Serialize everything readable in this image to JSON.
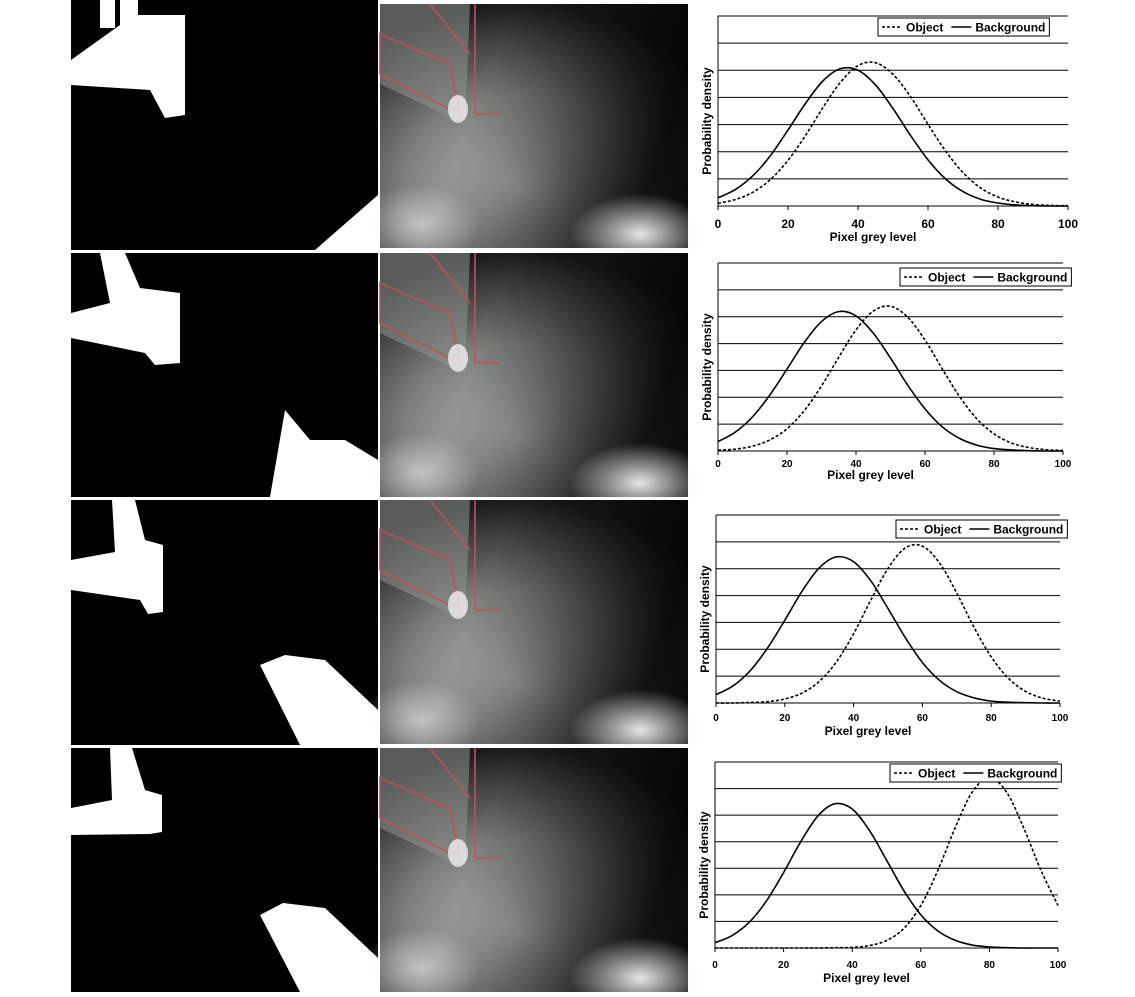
{
  "chart_data": [
    {
      "type": "line",
      "x_label": "Pixel grey level",
      "y_label": "Probability density",
      "x": [
        0,
        5,
        10,
        15,
        20,
        25,
        30,
        35,
        40,
        45,
        50,
        55,
        60,
        65,
        70,
        75,
        80,
        85,
        90,
        95,
        100
      ],
      "series": [
        {
          "name": "Object",
          "color": "#000000",
          "line_style": "dashed",
          "values": [
            0.1,
            0.24,
            0.51,
            0.98,
            1.68,
            2.6,
            3.63,
            4.56,
            5.17,
            5.28,
            4.85,
            4.03,
            3.01,
            2.03,
            1.23,
            0.67,
            0.33,
            0.15,
            0.06,
            0.02,
            0.01
          ]
        },
        {
          "name": "Background",
          "color": "#000000",
          "line_style": "solid",
          "values": [
            0.3,
            0.61,
            1.12,
            1.86,
            2.8,
            3.78,
            4.61,
            5.06,
            5.0,
            4.46,
            3.59,
            2.6,
            1.7,
            1.0,
            0.53,
            0.25,
            0.11,
            0.04,
            0.01,
            0.0,
            0.0
          ]
        }
      ],
      "xlim": [
        0,
        100
      ],
      "xticks": [
        0,
        20,
        40,
        60,
        80,
        100
      ],
      "ylim": [
        0,
        7
      ],
      "yticks": [
        0,
        1,
        2,
        3,
        4,
        5,
        6,
        7
      ],
      "grid": true,
      "legend": "top-right"
    },
    {
      "type": "line",
      "x_label": "Pixel grey level",
      "y_label": "Probability density",
      "x": [
        0,
        5,
        10,
        15,
        20,
        25,
        30,
        35,
        40,
        45,
        50,
        55,
        60,
        65,
        70,
        75,
        80,
        85,
        90,
        95,
        100
      ],
      "series": [
        {
          "name": "Object",
          "color": "#000000",
          "line_style": "dashed",
          "values": [
            0.03,
            0.07,
            0.18,
            0.41,
            0.83,
            1.5,
            2.42,
            3.49,
            4.51,
            5.21,
            5.39,
            4.98,
            4.13,
            3.06,
            2.03,
            1.2,
            0.64,
            0.3,
            0.13,
            0.05,
            0.02
          ]
        },
        {
          "name": "Background",
          "color": "#000000",
          "line_style": "solid",
          "values": [
            0.35,
            0.7,
            1.27,
            2.08,
            3.05,
            4.04,
            4.82,
            5.19,
            5.03,
            4.39,
            3.46,
            2.45,
            1.57,
            0.9,
            0.47,
            0.22,
            0.09,
            0.04,
            0.01,
            0.0,
            0.0
          ]
        }
      ],
      "xlim": [
        0,
        100
      ],
      "xticks": [
        0,
        20,
        40,
        60,
        80,
        100
      ],
      "ylim": [
        0,
        7
      ],
      "yticks": [
        0,
        1,
        2,
        3,
        4,
        5,
        6,
        7
      ],
      "grid": true,
      "legend": "top-right"
    },
    {
      "type": "line",
      "x_label": "Pixel grey level",
      "y_label": "Probability density",
      "x": [
        0,
        5,
        10,
        15,
        20,
        25,
        30,
        35,
        40,
        45,
        50,
        55,
        60,
        65,
        70,
        75,
        80,
        85,
        90,
        95,
        100
      ],
      "series": [
        {
          "name": "Object",
          "color": "#000000",
          "line_style": "dashed",
          "values": [
            0.0,
            0.0,
            0.02,
            0.05,
            0.15,
            0.37,
            0.8,
            1.53,
            2.58,
            3.83,
            5.01,
            5.77,
            5.84,
            5.21,
            4.09,
            2.82,
            1.72,
            0.92,
            0.43,
            0.18,
            0.07
          ]
        },
        {
          "name": "Background",
          "color": "#000000",
          "line_style": "solid",
          "values": [
            0.31,
            0.64,
            1.21,
            2.05,
            3.08,
            4.16,
            5.03,
            5.44,
            5.26,
            4.55,
            3.52,
            2.44,
            1.51,
            0.84,
            0.42,
            0.19,
            0.07,
            0.03,
            0.01,
            0.0,
            0.0
          ]
        }
      ],
      "xlim": [
        0,
        100
      ],
      "xticks": [
        0,
        20,
        40,
        60,
        80,
        100
      ],
      "ylim": [
        0,
        7
      ],
      "yticks": [
        0,
        1,
        2,
        3,
        4,
        5,
        6,
        7
      ],
      "grid": true,
      "legend": "top-right"
    },
    {
      "type": "line",
      "x_label": "Pixel grey level",
      "y_label": "Probability density",
      "x": [
        0,
        5,
        10,
        15,
        20,
        25,
        30,
        35,
        40,
        45,
        50,
        55,
        60,
        65,
        70,
        75,
        80,
        85,
        90,
        95,
        100
      ],
      "series": [
        {
          "name": "Object",
          "color": "#000000",
          "line_style": "dashed",
          "values": [
            0.0,
            0.0,
            0.0,
            0.0,
            0.0,
            0.0,
            0.0,
            0.01,
            0.02,
            0.09,
            0.28,
            0.73,
            1.6,
            2.93,
            4.52,
            5.87,
            6.4,
            5.87,
            4.52,
            2.93,
            1.6
          ]
        },
        {
          "name": "Background",
          "color": "#000000",
          "line_style": "solid",
          "values": [
            0.2,
            0.47,
            0.97,
            1.77,
            2.84,
            4.0,
            4.97,
            5.43,
            5.23,
            4.43,
            3.31,
            2.17,
            1.25,
            0.64,
            0.29,
            0.11,
            0.04,
            0.01,
            0.0,
            0.0,
            0.0
          ]
        }
      ],
      "xlim": [
        0,
        100
      ],
      "xticks": [
        0,
        20,
        40,
        60,
        80,
        100
      ],
      "ylim": [
        0,
        7
      ],
      "yticks": [
        0,
        1,
        2,
        3,
        4,
        5,
        6,
        7
      ],
      "grid": true,
      "legend": "top-right"
    }
  ]
}
